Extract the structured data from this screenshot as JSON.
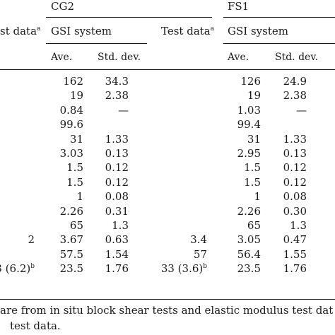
{
  "header": {
    "group1": "CG2",
    "group2": "FS1",
    "test_data_left": "st data",
    "test_data_left_sup": "a",
    "gsi_system_1": "GSI system",
    "test_data_mid": "Test data",
    "test_data_mid_sup": "a",
    "gsi_system_2": "GSI system",
    "ave_1": "Ave.",
    "std_1": "Std. dev.",
    "ave_2": "Ave.",
    "std_2": "Std. dev."
  },
  "rows": [
    {
      "left": "",
      "c1": "162",
      "c2": "34.3",
      "mid": "",
      "c3": "126",
      "c4": "24.9"
    },
    {
      "left": "",
      "c1": "19",
      "c2": "2.38",
      "mid": "",
      "c3": "19",
      "c4": "2.38"
    },
    {
      "left": "",
      "c1": "0.84",
      "c2": "—",
      "mid": "",
      "c3": "1.03",
      "c4": "—"
    },
    {
      "left": "",
      "c1": "99.6",
      "c2": "",
      "mid": "",
      "c3": "99.4",
      "c4": ""
    },
    {
      "left": "",
      "c1": "31",
      "c2": "1.33",
      "mid": "",
      "c3": "31",
      "c4": "1.33"
    },
    {
      "left": "",
      "c1": "3.03",
      "c2": "0.13",
      "mid": "",
      "c3": "2.95",
      "c4": "0.13"
    },
    {
      "left": "",
      "c1": "1.5",
      "c2": "0.12",
      "mid": "",
      "c3": "1.5",
      "c4": "0.12"
    },
    {
      "left": "",
      "c1": "1.5",
      "c2": "0.12",
      "mid": "",
      "c3": "1.5",
      "c4": "0.12"
    },
    {
      "left": "",
      "c1": "1",
      "c2": "0.08",
      "mid": "",
      "c3": "1",
      "c4": "0.08"
    },
    {
      "left": "",
      "c1": "2.26",
      "c2": "0.31",
      "mid": "",
      "c3": "2.26",
      "c4": "0.30"
    },
    {
      "left": "",
      "c1": "65",
      "c2": "1.3",
      "mid": "",
      "c3": "65",
      "c4": "1.3"
    },
    {
      "left": "2",
      "c1": "3.67",
      "c2": "0.63",
      "mid": "3.4",
      "c3": "3.05",
      "c4": "0.47"
    },
    {
      "left": "",
      "c1": "57.5",
      "c2": "1.54",
      "mid": "57",
      "c3": "56.4",
      "c4": "1.55"
    },
    {
      "left": "3 (6.2)",
      "left_sup": "b",
      "c1": "23.5",
      "c2": "1.76",
      "mid": "33 (3.6)",
      "mid_sup": "b",
      "c3": "23.5",
      "c4": "1.76"
    }
  ],
  "footnotes": {
    "line1": "are from in situ block shear tests and elastic modulus test dat",
    "line2": "test data."
  }
}
